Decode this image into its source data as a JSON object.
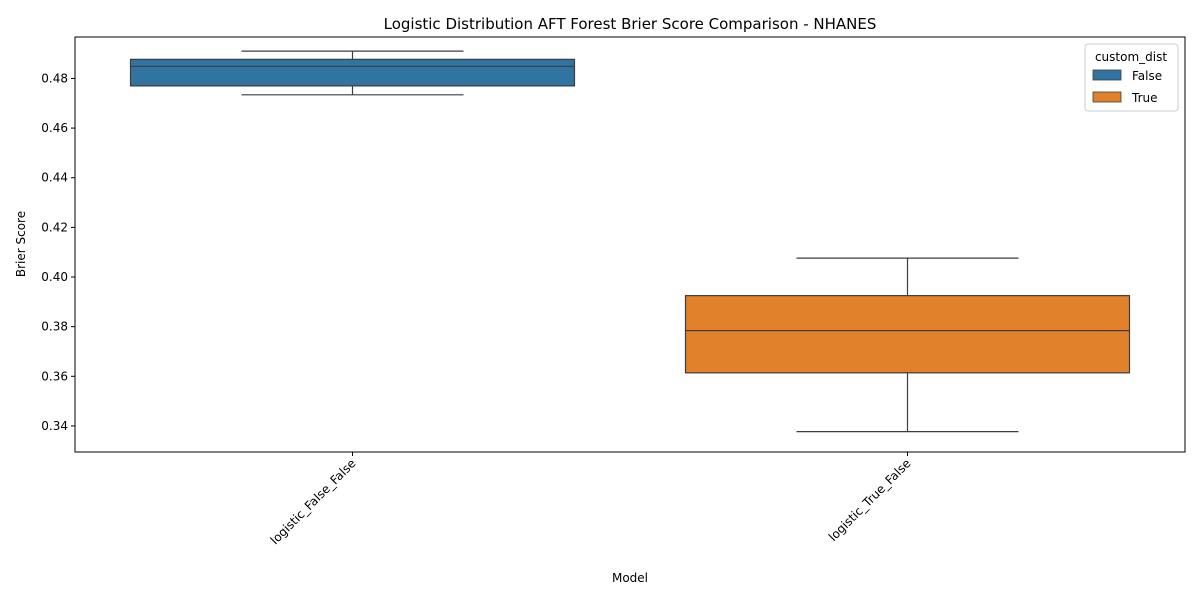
{
  "chart_data": {
    "type": "box",
    "title": "Logistic Distribution AFT Forest Brier Score Comparison - NHANES",
    "xlabel": "Model",
    "ylabel": "Brier Score",
    "ylim": [
      0.3295,
      0.4967
    ],
    "yticks": [
      0.34,
      0.36,
      0.38,
      0.4,
      0.42,
      0.44,
      0.46,
      0.48
    ],
    "ytick_labels": [
      "0.34",
      "0.36",
      "0.38",
      "0.40",
      "0.42",
      "0.44",
      "0.46",
      "0.48"
    ],
    "categories": [
      "logistic_False_False",
      "logistic_True_False"
    ],
    "legend": {
      "title": "custom_dist",
      "placement": "top-right",
      "entries": [
        {
          "label": "False",
          "color": "#3274a1"
        },
        {
          "label": "True",
          "color": "#e1812c"
        }
      ]
    },
    "boxes": [
      {
        "category": "logistic_False_False",
        "hue": "False",
        "whisker_low": 0.4734,
        "q1": 0.477,
        "median": 0.4849,
        "q3": 0.4877,
        "whisker_high": 0.491,
        "color": "#3274a1"
      },
      {
        "category": "logistic_True_False",
        "hue": "True",
        "whisker_low": 0.3377,
        "q1": 0.3614,
        "median": 0.3784,
        "q3": 0.3925,
        "whisker_high": 0.4076,
        "color": "#e1812c"
      }
    ]
  }
}
